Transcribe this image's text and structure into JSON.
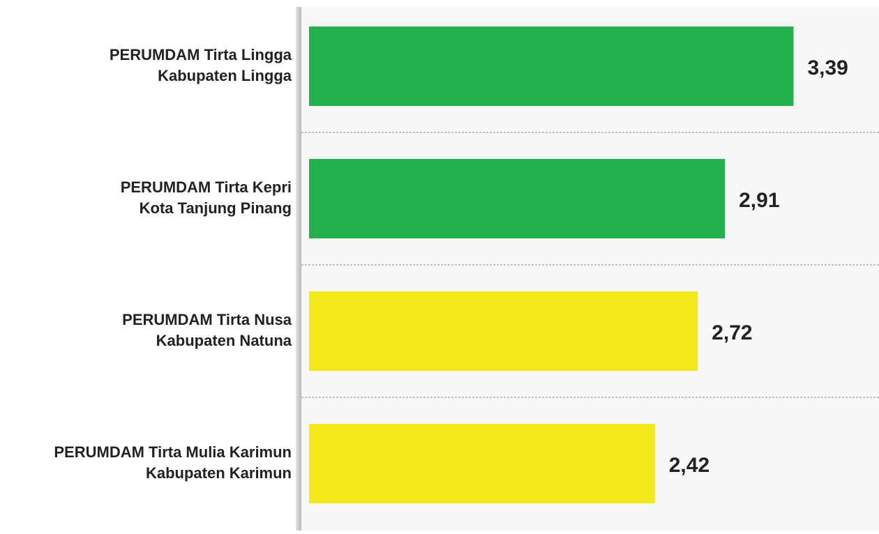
{
  "chart_data": {
    "type": "barh",
    "categories": [
      [
        "PERUMDAM Tirta Lingga",
        "Kabupaten Lingga"
      ],
      [
        "PERUMDAM Tirta Kepri",
        "Kota Tanjung Pinang"
      ],
      [
        "PERUMDAM Tirta Nusa",
        "Kabupaten Natuna"
      ],
      [
        "PERUMDAM Tirta Mulia Karimun",
        "Kabupaten Karimun"
      ]
    ],
    "values": [
      3.39,
      2.91,
      2.72,
      2.42
    ],
    "value_labels": [
      "3,39",
      "2,91",
      "2,72",
      "2,42"
    ],
    "colors": [
      "#22b14c",
      "#22b14c",
      "#f2e81a",
      "#f2e81a"
    ],
    "xlim": [
      0,
      3.5
    ]
  }
}
